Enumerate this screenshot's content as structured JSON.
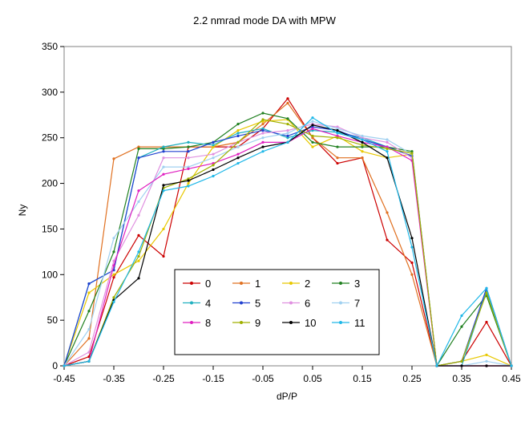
{
  "chart_data": {
    "type": "line",
    "title": "2.2 nmrad mode DA with MPW",
    "xlabel": "dP/P",
    "ylabel": "Ny",
    "xlim": [
      -0.45,
      0.45
    ],
    "ylim": [
      0,
      350
    ],
    "xticks": [
      -0.45,
      -0.35,
      -0.25,
      -0.15,
      -0.05,
      0.05,
      0.15,
      0.25,
      0.35,
      0.45
    ],
    "xtick_labels": [
      "-0.45",
      "-0.35",
      "-0.25",
      "-0.15",
      "-0.05",
      "0.05",
      "0.15",
      "0.25",
      "0.35",
      "0.45"
    ],
    "yticks": [
      0,
      50,
      100,
      150,
      200,
      250,
      300,
      350
    ],
    "ytick_labels": [
      "0",
      "50",
      "100",
      "150",
      "200",
      "250",
      "300",
      "350"
    ],
    "grid": false,
    "legend_position": "bottom-center",
    "x": [
      -0.45,
      -0.4,
      -0.35,
      -0.3,
      -0.25,
      -0.2,
      -0.15,
      -0.1,
      -0.05,
      0.0,
      0.05,
      0.1,
      0.15,
      0.2,
      0.25,
      0.3,
      0.35,
      0.4,
      0.45
    ],
    "series": [
      {
        "name": "0",
        "color": "#cc0000",
        "values": [
          0,
          10,
          97,
          143,
          120,
          240,
          240,
          240,
          260,
          293,
          250,
          222,
          228,
          138,
          113,
          0,
          5,
          48,
          0
        ]
      },
      {
        "name": "1",
        "color": "#e07020",
        "values": [
          0,
          30,
          227,
          240,
          240,
          240,
          240,
          245,
          265,
          288,
          250,
          228,
          228,
          168,
          100,
          0,
          0,
          0,
          0
        ]
      },
      {
        "name": "2",
        "color": "#e8c800",
        "values": [
          0,
          80,
          100,
          115,
          150,
          200,
          240,
          258,
          268,
          270,
          240,
          252,
          235,
          228,
          232,
          0,
          5,
          12,
          0
        ]
      },
      {
        "name": "3",
        "color": "#208020",
        "values": [
          0,
          60,
          125,
          238,
          238,
          240,
          245,
          265,
          277,
          271,
          245,
          240,
          240,
          240,
          235,
          0,
          43,
          77,
          0
        ]
      },
      {
        "name": "4",
        "color": "#20b0c0",
        "values": [
          0,
          90,
          105,
          228,
          240,
          245,
          242,
          255,
          260,
          250,
          258,
          256,
          250,
          240,
          230,
          0,
          0,
          82,
          0
        ]
      },
      {
        "name": "5",
        "color": "#2040d0",
        "values": [
          0,
          90,
          105,
          228,
          235,
          235,
          245,
          252,
          258,
          252,
          262,
          258,
          248,
          240,
          230,
          0,
          5,
          85,
          0
        ]
      },
      {
        "name": "6",
        "color": "#e090e0",
        "values": [
          0,
          15,
          115,
          165,
          228,
          228,
          232,
          245,
          255,
          258,
          265,
          262,
          250,
          245,
          228,
          0,
          0,
          0,
          0
        ]
      },
      {
        "name": "7",
        "color": "#a0d0f0",
        "values": [
          0,
          40,
          140,
          180,
          218,
          218,
          228,
          240,
          250,
          255,
          268,
          260,
          252,
          248,
          232,
          0,
          0,
          5,
          0
        ]
      },
      {
        "name": "8",
        "color": "#e020c0",
        "values": [
          0,
          5,
          110,
          192,
          210,
          216,
          222,
          232,
          245,
          245,
          260,
          252,
          245,
          240,
          225,
          0,
          0,
          0,
          0
        ]
      },
      {
        "name": "9",
        "color": "#a0b000",
        "values": [
          0,
          5,
          75,
          120,
          195,
          205,
          220,
          245,
          270,
          265,
          252,
          250,
          242,
          238,
          233,
          0,
          5,
          80,
          0
        ]
      },
      {
        "name": "10",
        "color": "#000000",
        "values": [
          0,
          5,
          72,
          96,
          198,
          203,
          215,
          228,
          240,
          245,
          264,
          258,
          245,
          228,
          140,
          0,
          0,
          0,
          0
        ]
      },
      {
        "name": "11",
        "color": "#20b8e8",
        "values": [
          0,
          5,
          70,
          125,
          192,
          197,
          208,
          222,
          235,
          245,
          272,
          255,
          248,
          235,
          130,
          0,
          55,
          85,
          0
        ]
      }
    ]
  }
}
